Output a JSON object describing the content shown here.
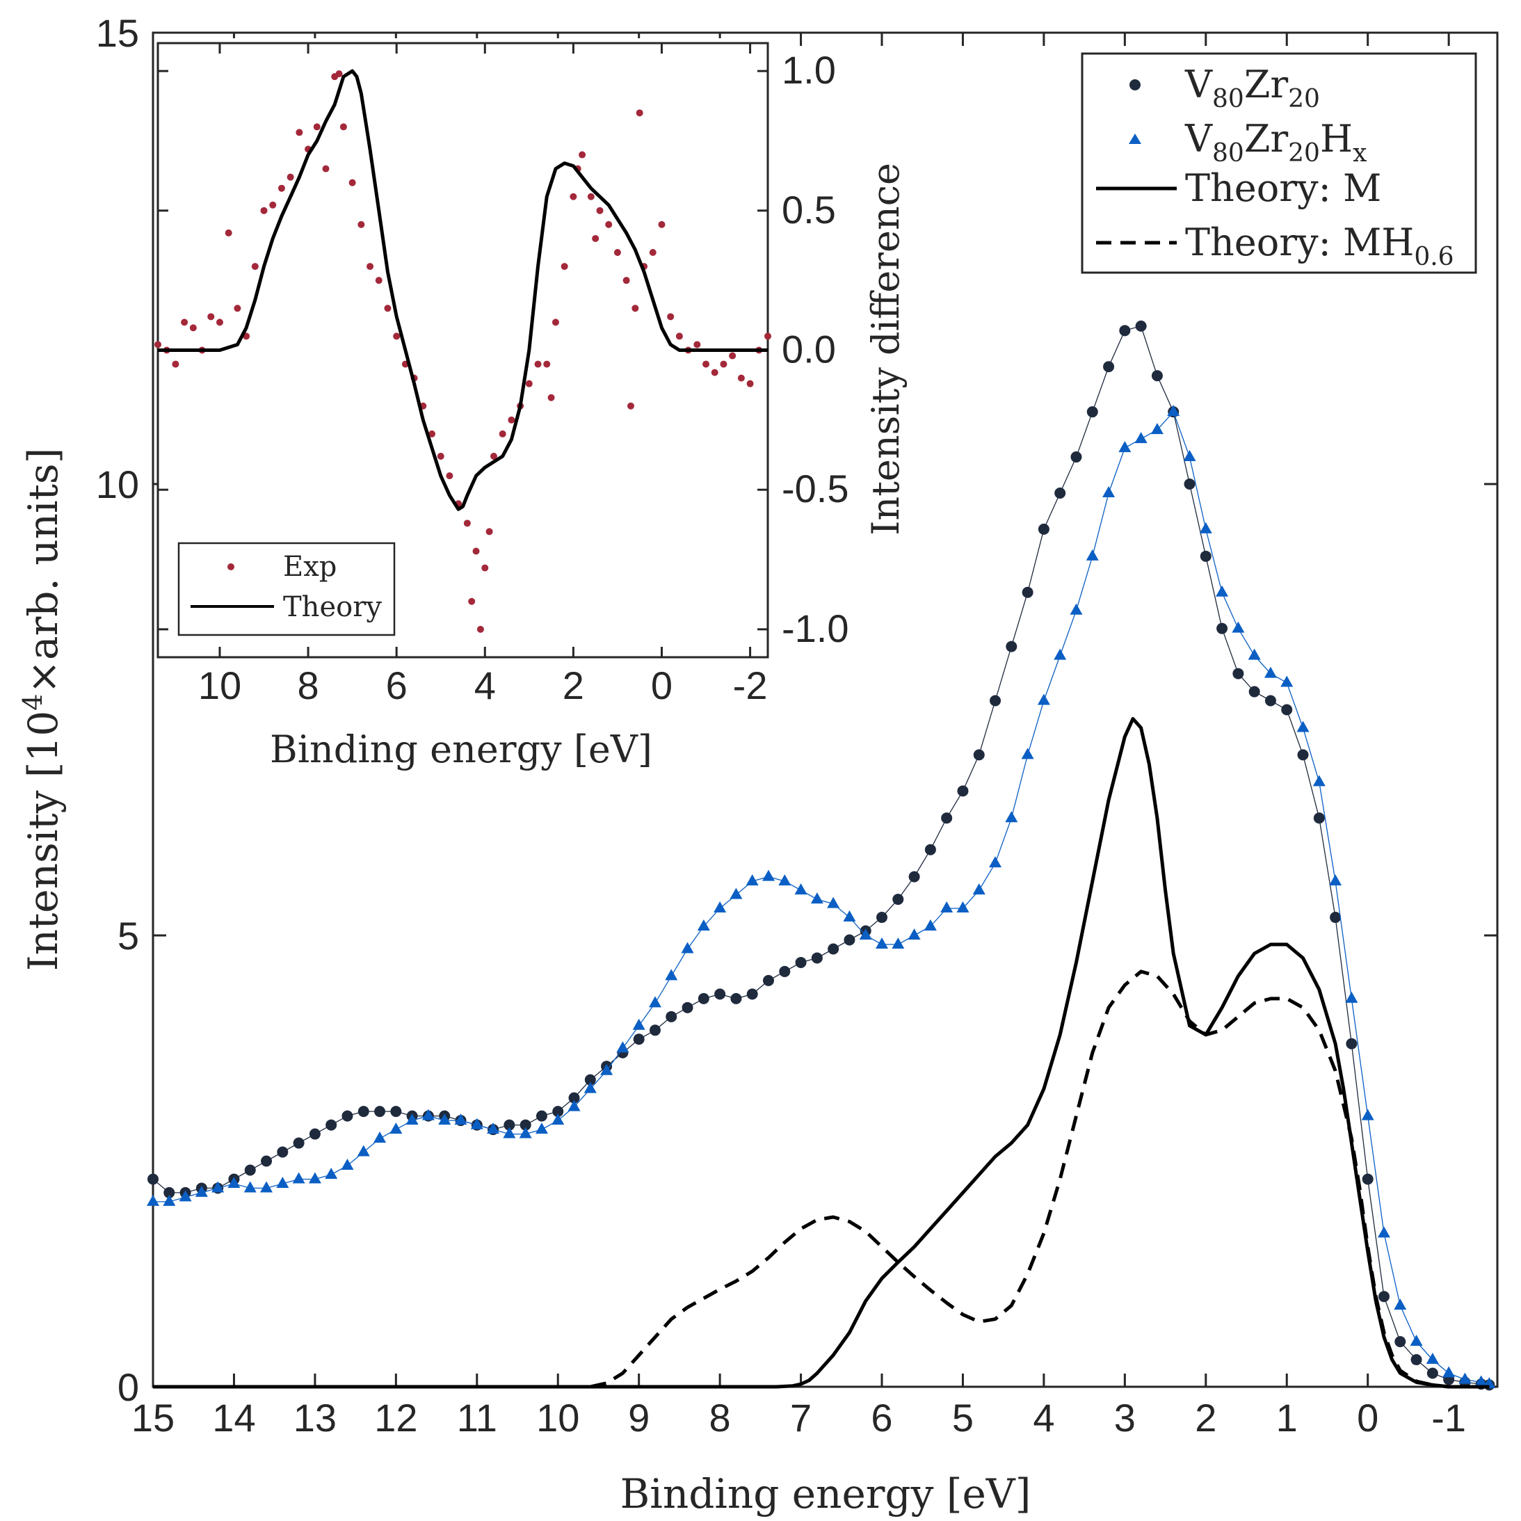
{
  "colors": {
    "dark": "#1f2a3d",
    "blue": "#0b5fc4",
    "red": "#a3283a",
    "black": "#000000",
    "axis": "#262626"
  },
  "chart_data": [
    {
      "type": "line",
      "title": "",
      "xlabel": "Binding energy [eV]",
      "ylabel_parts": [
        "Intensity [10",
        "4",
        "×arb. units]"
      ],
      "xlim": [
        15,
        -1.6
      ],
      "ylim": [
        0,
        15
      ],
      "xticks": [
        15,
        14,
        13,
        12,
        11,
        10,
        9,
        8,
        7,
        6,
        5,
        4,
        3,
        2,
        1,
        0,
        -1
      ],
      "xticklabels": [
        "15",
        "14",
        "13",
        "12",
        "11",
        "10",
        "9",
        "8",
        "7",
        "6",
        "5",
        "4",
        "3",
        "2",
        "1",
        "0",
        "-1"
      ],
      "yticks": [
        0,
        5,
        10,
        15
      ],
      "yticklabels": [
        "0",
        "5",
        "10",
        "15"
      ],
      "legend_position": "top-right",
      "legend": [
        {
          "base": "V",
          "sub1": "80",
          "mid": "Zr",
          "sub2": "20",
          "tail": "",
          "sub3": ""
        },
        {
          "base": "V",
          "sub1": "80",
          "mid": "Zr",
          "sub2": "20",
          "tail": "H",
          "sub3": "x"
        },
        {
          "base": "Theory:  M",
          "sub1": "",
          "mid": "",
          "sub2": "",
          "tail": "",
          "sub3": ""
        },
        {
          "base": "Theory:  MH",
          "sub1": "0.6",
          "mid": "",
          "sub2": "",
          "tail": "",
          "sub3": ""
        }
      ],
      "series": [
        {
          "name": "V80Zr20",
          "style": "circle-markers-with-thin-line",
          "color": "#1f2a3d",
          "x": [
            15.0,
            14.8,
            14.6,
            14.4,
            14.2,
            14.0,
            13.8,
            13.6,
            13.4,
            13.2,
            13.0,
            12.8,
            12.6,
            12.4,
            12.2,
            12.0,
            11.8,
            11.6,
            11.4,
            11.2,
            11.0,
            10.8,
            10.6,
            10.4,
            10.2,
            10.0,
            9.8,
            9.6,
            9.4,
            9.2,
            9.0,
            8.8,
            8.6,
            8.4,
            8.2,
            8.0,
            7.8,
            7.6,
            7.4,
            7.2,
            7.0,
            6.8,
            6.6,
            6.4,
            6.2,
            6.0,
            5.8,
            5.6,
            5.4,
            5.2,
            5.0,
            4.8,
            4.6,
            4.4,
            4.2,
            4.0,
            3.8,
            3.6,
            3.4,
            3.2,
            3.0,
            2.8,
            2.6,
            2.4,
            2.2,
            2.0,
            1.8,
            1.6,
            1.4,
            1.2,
            1.0,
            0.8,
            0.6,
            0.4,
            0.2,
            0.0,
            -0.2,
            -0.4,
            -0.6,
            -0.8,
            -1.0,
            -1.2,
            -1.4,
            -1.5
          ],
          "y": [
            2.3,
            2.15,
            2.15,
            2.2,
            2.2,
            2.3,
            2.4,
            2.5,
            2.6,
            2.7,
            2.8,
            2.9,
            3.0,
            3.05,
            3.05,
            3.05,
            3.0,
            3.0,
            3.0,
            2.95,
            2.9,
            2.85,
            2.9,
            2.9,
            3.0,
            3.05,
            3.2,
            3.4,
            3.55,
            3.7,
            3.85,
            3.95,
            4.1,
            4.2,
            4.3,
            4.35,
            4.3,
            4.35,
            4.5,
            4.6,
            4.7,
            4.75,
            4.85,
            4.95,
            5.05,
            5.2,
            5.4,
            5.65,
            5.95,
            6.3,
            6.6,
            7.0,
            7.6,
            8.2,
            8.8,
            9.5,
            9.9,
            10.3,
            10.8,
            11.3,
            11.7,
            11.75,
            11.2,
            10.8,
            10.0,
            9.2,
            8.4,
            7.9,
            7.7,
            7.6,
            7.5,
            7.0,
            6.3,
            5.2,
            3.8,
            2.3,
            1.0,
            0.5,
            0.3,
            0.15,
            0.08,
            0.05,
            0.03,
            0.02
          ]
        },
        {
          "name": "V80Zr20Hx",
          "style": "triangle-markers-with-thin-line",
          "color": "#0b5fc4",
          "x": [
            15.0,
            14.8,
            14.6,
            14.4,
            14.2,
            14.0,
            13.8,
            13.6,
            13.4,
            13.2,
            13.0,
            12.8,
            12.6,
            12.4,
            12.2,
            12.0,
            11.8,
            11.6,
            11.4,
            11.2,
            11.0,
            10.8,
            10.6,
            10.4,
            10.2,
            10.0,
            9.8,
            9.6,
            9.4,
            9.2,
            9.0,
            8.8,
            8.6,
            8.4,
            8.2,
            8.0,
            7.8,
            7.6,
            7.4,
            7.2,
            7.0,
            6.8,
            6.6,
            6.4,
            6.2,
            6.0,
            5.8,
            5.6,
            5.4,
            5.2,
            5.0,
            4.8,
            4.6,
            4.4,
            4.2,
            4.0,
            3.8,
            3.6,
            3.4,
            3.2,
            3.0,
            2.8,
            2.6,
            2.4,
            2.2,
            2.0,
            1.8,
            1.6,
            1.4,
            1.2,
            1.0,
            0.8,
            0.6,
            0.4,
            0.2,
            0.0,
            -0.2,
            -0.4,
            -0.6,
            -0.8,
            -1.0,
            -1.2,
            -1.4,
            -1.5
          ],
          "y": [
            2.05,
            2.05,
            2.1,
            2.15,
            2.2,
            2.25,
            2.2,
            2.2,
            2.25,
            2.3,
            2.3,
            2.35,
            2.45,
            2.6,
            2.75,
            2.85,
            2.95,
            3.0,
            2.95,
            2.95,
            2.9,
            2.85,
            2.8,
            2.8,
            2.85,
            2.95,
            3.1,
            3.3,
            3.5,
            3.75,
            4.0,
            4.25,
            4.55,
            4.85,
            5.1,
            5.3,
            5.45,
            5.6,
            5.65,
            5.6,
            5.5,
            5.4,
            5.35,
            5.2,
            5.0,
            4.9,
            4.9,
            5.0,
            5.1,
            5.3,
            5.3,
            5.5,
            5.8,
            6.3,
            7.0,
            7.6,
            8.1,
            8.6,
            9.2,
            9.9,
            10.4,
            10.5,
            10.6,
            10.8,
            10.3,
            9.5,
            8.8,
            8.4,
            8.1,
            7.9,
            7.8,
            7.3,
            6.7,
            5.6,
            4.3,
            3.0,
            1.7,
            0.9,
            0.5,
            0.3,
            0.15,
            0.08,
            0.05,
            0.03
          ]
        },
        {
          "name": "Theory: M",
          "style": "solid",
          "color": "#000000",
          "x": [
            15.0,
            10.0,
            8.0,
            7.3,
            7.1,
            7.0,
            6.9,
            6.8,
            6.6,
            6.4,
            6.2,
            6.0,
            5.8,
            5.6,
            5.4,
            5.2,
            5.0,
            4.8,
            4.6,
            4.4,
            4.2,
            4.0,
            3.8,
            3.6,
            3.4,
            3.2,
            3.0,
            2.9,
            2.8,
            2.7,
            2.6,
            2.5,
            2.4,
            2.2,
            2.0,
            1.8,
            1.6,
            1.4,
            1.2,
            1.0,
            0.8,
            0.6,
            0.4,
            0.3,
            0.2,
            0.1,
            0.0,
            -0.1,
            -0.2,
            -0.3,
            -0.4,
            -0.6,
            -0.8,
            -1.0,
            -1.2,
            -1.5
          ],
          "y": [
            0.0,
            0.0,
            0.0,
            0.0,
            0.01,
            0.03,
            0.07,
            0.15,
            0.35,
            0.6,
            0.95,
            1.2,
            1.38,
            1.55,
            1.75,
            1.95,
            2.15,
            2.35,
            2.55,
            2.7,
            2.9,
            3.3,
            3.9,
            4.7,
            5.6,
            6.5,
            7.2,
            7.4,
            7.3,
            6.9,
            6.3,
            5.5,
            4.8,
            4.0,
            3.9,
            4.2,
            4.55,
            4.8,
            4.9,
            4.9,
            4.75,
            4.4,
            3.8,
            3.3,
            2.7,
            2.1,
            1.5,
            0.95,
            0.55,
            0.3,
            0.15,
            0.05,
            0.02,
            0.0,
            0.0,
            0.0
          ]
        },
        {
          "name": "Theory: MH0.6",
          "style": "dashed",
          "color": "#000000",
          "x": [
            15.0,
            10.0,
            9.8,
            9.6,
            9.4,
            9.2,
            9.0,
            8.8,
            8.6,
            8.4,
            8.2,
            8.0,
            7.8,
            7.6,
            7.4,
            7.2,
            7.0,
            6.8,
            6.6,
            6.4,
            6.2,
            6.0,
            5.8,
            5.6,
            5.4,
            5.2,
            5.0,
            4.8,
            4.6,
            4.4,
            4.2,
            4.0,
            3.8,
            3.6,
            3.4,
            3.2,
            3.0,
            2.8,
            2.6,
            2.4,
            2.2,
            2.0,
            1.8,
            1.6,
            1.4,
            1.2,
            1.0,
            0.8,
            0.6,
            0.4,
            0.2,
            0.1,
            0.0,
            -0.1,
            -0.2,
            -0.3,
            -0.4,
            -0.6,
            -0.8,
            -1.0,
            -1.5
          ],
          "y": [
            0.0,
            0.0,
            0.0,
            0.0,
            0.04,
            0.15,
            0.35,
            0.55,
            0.75,
            0.88,
            0.98,
            1.08,
            1.17,
            1.28,
            1.43,
            1.6,
            1.75,
            1.85,
            1.88,
            1.83,
            1.72,
            1.55,
            1.38,
            1.22,
            1.07,
            0.93,
            0.8,
            0.72,
            0.75,
            0.9,
            1.25,
            1.7,
            2.3,
            3.0,
            3.7,
            4.2,
            4.45,
            4.6,
            4.55,
            4.35,
            4.05,
            3.9,
            3.95,
            4.1,
            4.25,
            4.3,
            4.3,
            4.2,
            3.95,
            3.5,
            2.75,
            2.2,
            1.55,
            1.0,
            0.6,
            0.35,
            0.18,
            0.06,
            0.02,
            0.0,
            0.0
          ]
        }
      ]
    },
    {
      "type": "line",
      "title": "",
      "position": "inset top-left",
      "xlabel": "Binding energy [eV]",
      "ylabel": "Intensity difference",
      "xlim": [
        11.4,
        -2.4
      ],
      "ylim": [
        -1.1,
        1.1
      ],
      "xticks": [
        10,
        8,
        6,
        4,
        2,
        0,
        -2
      ],
      "xticklabels": [
        "10",
        "8",
        "6",
        "4",
        "2",
        "0",
        "-2"
      ],
      "yticks": [
        1.0,
        0.5,
        0.0,
        -0.5,
        -1.0
      ],
      "yticklabels": [
        "1.0",
        "0.5",
        "0.0",
        "-0.5",
        "-1.0"
      ],
      "legend_position": "bottom-left",
      "legend": [
        "Exp",
        "Theory"
      ],
      "series": [
        {
          "name": "Exp",
          "style": "dots",
          "color": "#a3283a",
          "x": [
            11.4,
            11.2,
            11.0,
            10.8,
            10.6,
            10.4,
            10.2,
            10.0,
            9.8,
            9.6,
            9.4,
            9.2,
            9.0,
            8.8,
            8.6,
            8.4,
            8.2,
            8.0,
            7.8,
            7.6,
            7.4,
            7.3,
            7.2,
            7.0,
            6.8,
            6.6,
            6.4,
            6.2,
            6.0,
            5.8,
            5.6,
            5.4,
            5.2,
            5.0,
            4.8,
            4.6,
            4.4,
            4.2,
            4.0,
            3.8,
            3.6,
            3.4,
            3.2,
            3.0,
            2.8,
            2.6,
            2.4,
            2.2,
            2.0,
            1.9,
            1.8,
            1.6,
            1.4,
            1.2,
            1.0,
            0.8,
            0.6,
            0.4,
            0.2,
            0.0,
            -0.2,
            -0.4,
            -0.6,
            -0.8,
            -1.0,
            -1.2,
            -1.4,
            -1.6,
            -1.8,
            -2.0,
            -2.2,
            -2.4,
            4.3,
            4.1,
            3.9,
            0.7,
            1.5,
            0.5,
            2.5
          ],
          "y": [
            0.02,
            0.0,
            -0.05,
            0.1,
            0.08,
            0.0,
            0.12,
            0.1,
            0.42,
            0.15,
            0.05,
            0.3,
            0.5,
            0.52,
            0.58,
            0.62,
            0.78,
            0.72,
            0.8,
            0.65,
            0.98,
            0.99,
            0.8,
            0.6,
            0.45,
            0.3,
            0.25,
            0.15,
            0.05,
            -0.05,
            -0.1,
            -0.2,
            -0.3,
            -0.38,
            -0.45,
            -0.55,
            -0.62,
            -0.72,
            -0.78,
            -0.38,
            -0.3,
            -0.25,
            -0.2,
            -0.12,
            -0.05,
            -0.05,
            0.1,
            0.3,
            0.55,
            0.65,
            0.7,
            0.55,
            0.5,
            0.45,
            0.35,
            0.25,
            0.15,
            0.3,
            0.35,
            0.45,
            0.12,
            0.05,
            0.0,
            0.02,
            -0.05,
            -0.08,
            -0.05,
            -0.02,
            -0.1,
            -0.12,
            0.0,
            0.05,
            -0.9,
            -1.0,
            -0.65,
            -0.2,
            0.4,
            0.85,
            -0.17
          ]
        },
        {
          "name": "Theory",
          "style": "solid",
          "color": "#000000",
          "x": [
            11.4,
            10.5,
            10.0,
            9.6,
            9.4,
            9.2,
            9.0,
            8.8,
            8.6,
            8.4,
            8.2,
            8.0,
            7.8,
            7.6,
            7.4,
            7.2,
            7.0,
            6.9,
            6.8,
            6.7,
            6.6,
            6.4,
            6.2,
            6.0,
            5.8,
            5.6,
            5.4,
            5.2,
            5.0,
            4.8,
            4.6,
            4.5,
            4.4,
            4.2,
            4.0,
            3.8,
            3.6,
            3.4,
            3.2,
            3.0,
            2.8,
            2.6,
            2.4,
            2.2,
            2.0,
            1.8,
            1.6,
            1.4,
            1.2,
            1.0,
            0.8,
            0.6,
            0.4,
            0.2,
            0.0,
            -0.2,
            -0.4,
            -0.6,
            -0.8,
            -1.0,
            -1.5,
            -2.0,
            -2.4
          ],
          "y": [
            0.0,
            0.0,
            0.0,
            0.02,
            0.08,
            0.18,
            0.3,
            0.4,
            0.48,
            0.55,
            0.62,
            0.7,
            0.75,
            0.82,
            0.88,
            0.98,
            1.0,
            0.98,
            0.92,
            0.82,
            0.72,
            0.5,
            0.28,
            0.12,
            0.0,
            -0.12,
            -0.25,
            -0.35,
            -0.45,
            -0.52,
            -0.57,
            -0.56,
            -0.52,
            -0.45,
            -0.42,
            -0.4,
            -0.38,
            -0.32,
            -0.2,
            0.0,
            0.3,
            0.55,
            0.65,
            0.67,
            0.66,
            0.62,
            0.58,
            0.55,
            0.52,
            0.47,
            0.42,
            0.36,
            0.28,
            0.18,
            0.08,
            0.02,
            0.0,
            0.0,
            0.0,
            0.0,
            0.0,
            0.0,
            0.0
          ]
        }
      ]
    }
  ]
}
